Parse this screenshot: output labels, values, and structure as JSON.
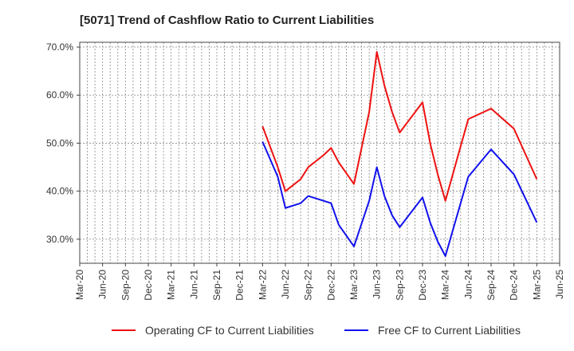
{
  "chart_data": {
    "type": "line",
    "title": "[5071]  Trend of Cashflow Ratio to Current Liabilities",
    "xlabel": "",
    "ylabel": "",
    "x_ticks": [
      "Mar-20",
      "Jun-20",
      "Sep-20",
      "Dec-20",
      "Mar-21",
      "Jun-21",
      "Sep-21",
      "Dec-21",
      "Mar-22",
      "Jun-22",
      "Sep-22",
      "Dec-22",
      "Mar-23",
      "Jun-23",
      "Sep-23",
      "Dec-23",
      "Mar-24",
      "Jun-24",
      "Sep-24",
      "Dec-24",
      "Mar-25",
      "Jun-25"
    ],
    "y_ticks": [
      "30.0%",
      "40.0%",
      "50.0%",
      "60.0%",
      "70.0%"
    ],
    "y_tick_values": [
      30,
      40,
      50,
      60,
      70
    ],
    "ylim": [
      25,
      71
    ],
    "grid": true,
    "legend_position": "bottom",
    "x": [
      "Mar-22",
      "May-22",
      "Jun-22",
      "Aug-22",
      "Sep-22",
      "Nov-22",
      "Dec-22",
      "Jan-23",
      "Mar-23",
      "May-23",
      "Jun-23",
      "Jul-23",
      "Aug-23",
      "Sep-23",
      "Dec-23",
      "Jan-24",
      "Feb-24",
      "Mar-24",
      "Jun-24",
      "Sep-24",
      "Dec-24",
      "Mar-25"
    ],
    "series": [
      {
        "name": "Operating CF to Current Liabilities",
        "color": "#ee1111",
        "values": [
          53.5,
          45.0,
          40.0,
          42.5,
          45.0,
          47.5,
          49.0,
          46.0,
          41.5,
          56.5,
          69.0,
          62.0,
          56.5,
          52.2,
          58.5,
          50.0,
          43.5,
          38.0,
          55.0,
          57.2,
          53.0,
          42.5
        ]
      },
      {
        "name": "Free CF to Current Liabilities",
        "color": "#1111ee",
        "values": [
          50.3,
          43.0,
          36.5,
          37.5,
          39.0,
          38.0,
          37.5,
          33.0,
          28.5,
          38.0,
          45.0,
          39.0,
          35.0,
          32.5,
          38.7,
          33.5,
          29.5,
          26.5,
          43.0,
          48.7,
          43.5,
          33.5
        ]
      }
    ]
  }
}
